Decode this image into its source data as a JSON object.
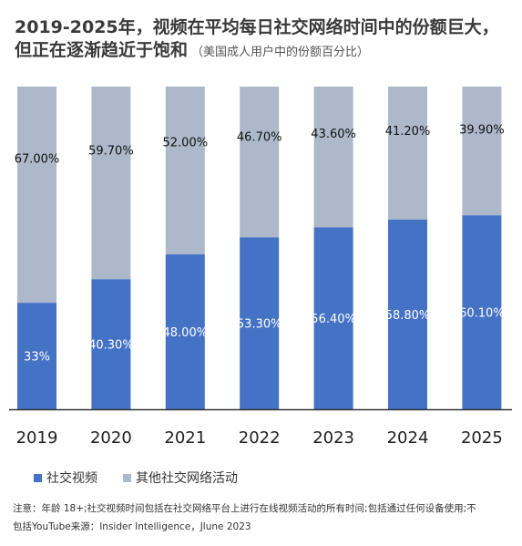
{
  "title_main": "2019-2025年，视频在平均每日社交网络时间中的份额巨大，",
  "title_line2": "但正在逐渐趋近于饱和",
  "subtitle": "（美国成人用户中的份额百分比）",
  "note_line1": "注意：年龄 18+;社交视频时间包括在社交网络平台上进行在线视频活动的所有时间;包括通过任何设备使用;不",
  "note_line2": "包括YouTube来源：Insider Intelligence，Jlune 2023",
  "chart_data": {
    "type": "bar",
    "stacked": true,
    "percent_stacked": true,
    "categories": [
      "2019",
      "2020",
      "2021",
      "2022",
      "2023",
      "2024",
      "2025"
    ],
    "series": [
      {
        "name": "社交视频",
        "values": [
          33,
          40.3,
          48.0,
          53.3,
          56.4,
          58.8,
          60.1
        ],
        "labels": [
          "33%",
          "40.30%",
          "48.00%",
          "53.30%",
          "56.40%",
          "58.80%",
          "60.10%"
        ],
        "color": "#4472c4"
      },
      {
        "name": "其他社交网络活动",
        "values": [
          67.0,
          59.7,
          52.0,
          46.7,
          43.6,
          41.2,
          39.9
        ],
        "labels": [
          "67.00%",
          "59.70%",
          "52.00%",
          "46.70%",
          "43.60%",
          "41.20%",
          "39.90%"
        ],
        "color": "#adb9ca"
      }
    ],
    "ylim": [
      0,
      100
    ],
    "grid": false,
    "legend_position": "bottom-left"
  }
}
